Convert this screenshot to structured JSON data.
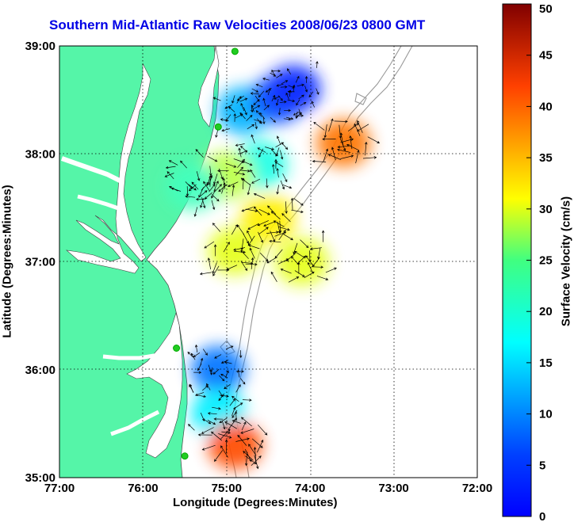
{
  "title": "Southern Mid-Atlantic Raw Velocities 2008/06/23 0800 GMT",
  "x_axis": {
    "label": "Longitude (Degrees:Minutes)",
    "ticks": [
      "77:00",
      "76:00",
      "75:00",
      "74:00",
      "73:00",
      "72:00"
    ]
  },
  "y_axis": {
    "label": "Latitude (Degrees:Minutes)",
    "ticks": [
      "39:00",
      "38:00",
      "37:00",
      "36:00",
      "35:00"
    ]
  },
  "colorbar": {
    "label": "Surface Velocity (cm/s)",
    "ticks": [
      "50",
      "45",
      "40",
      "35",
      "30",
      "25",
      "20",
      "15",
      "10",
      "5",
      "0"
    ],
    "range": [
      0,
      50
    ],
    "colormap": "jet"
  },
  "colors": {
    "land": "#55f5a8",
    "title": "#0000e6",
    "bathymetry": "#999999",
    "station": "#22cc22"
  },
  "chart_data": {
    "type": "heatmap",
    "lon_range": [
      -77,
      -72
    ],
    "lat_range": [
      35,
      39
    ],
    "grid": "dotted",
    "color_range": [
      0,
      50
    ],
    "units": "cm/s",
    "regions": [
      {
        "lon": -74.8,
        "lat": 38.4,
        "value": 15
      },
      {
        "lon": -74.4,
        "lat": 38.5,
        "value": 10
      },
      {
        "lon": -74.2,
        "lat": 38.6,
        "value": 8
      },
      {
        "lon": -73.6,
        "lat": 38.1,
        "value": 38
      },
      {
        "lon": -74.6,
        "lat": 37.9,
        "value": 20
      },
      {
        "lon": -75.0,
        "lat": 37.8,
        "value": 28
      },
      {
        "lon": -75.4,
        "lat": 37.7,
        "value": 22
      },
      {
        "lon": -74.5,
        "lat": 37.4,
        "value": 32
      },
      {
        "lon": -74.9,
        "lat": 37.1,
        "value": 30
      },
      {
        "lon": -74.1,
        "lat": 37.0,
        "value": 30
      },
      {
        "lon": -75.1,
        "lat": 36.0,
        "value": 12
      },
      {
        "lon": -75.1,
        "lat": 35.6,
        "value": 18
      },
      {
        "lon": -74.9,
        "lat": 35.3,
        "value": 40
      }
    ],
    "stations": [
      {
        "lon": -74.9,
        "lat": 38.95
      },
      {
        "lon": -75.1,
        "lat": 38.25
      },
      {
        "lon": -75.6,
        "lat": 36.2
      },
      {
        "lon": -75.5,
        "lat": 35.2
      }
    ]
  }
}
